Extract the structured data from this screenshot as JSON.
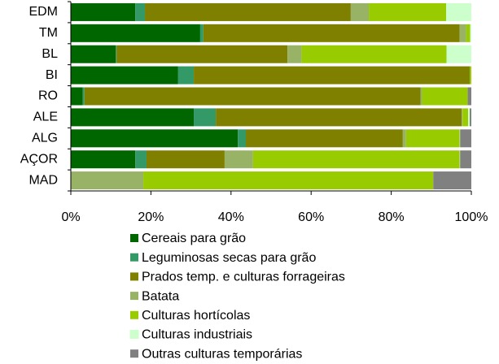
{
  "chart_data": {
    "type": "stacked-barh",
    "categories": [
      "EDM",
      "TM",
      "BL",
      "BI",
      "RO",
      "ALE",
      "ALG",
      "AÇOR",
      "MAD"
    ],
    "series": [
      {
        "name": "Cereais para grão",
        "color": "#006600",
        "values": [
          16.1,
          32.3,
          11.2,
          26.8,
          3.0,
          30.7,
          41.7,
          16.1,
          0
        ]
      },
      {
        "name": "Leguminosas secas para grão",
        "color": "#339966",
        "values": [
          2.4,
          0.8,
          0.2,
          3.9,
          0.4,
          5.5,
          2.0,
          2.8,
          0
        ]
      },
      {
        "name": "Prados temp. e culturas forrageiras",
        "color": "#808000",
        "values": [
          51.4,
          64.0,
          42.7,
          68.9,
          83.9,
          61.4,
          39.2,
          19.5,
          0
        ]
      },
      {
        "name": "Batata",
        "color": "#99b366",
        "values": [
          4.5,
          1.6,
          3.5,
          0,
          0.4,
          0.2,
          0.8,
          7.1,
          18.1
        ]
      },
      {
        "name": "Culturas hortícolas",
        "color": "#99cc00",
        "values": [
          19.3,
          1.0,
          36.2,
          0.4,
          11.4,
          1.4,
          13.4,
          51.6,
          72.4
        ]
      },
      {
        "name": "Culturas industriais",
        "color": "#ccffcc",
        "values": [
          6.3,
          0.3,
          6.2,
          0,
          0,
          0.4,
          0.1,
          0.1,
          0
        ]
      },
      {
        "name": "Outras culturas temporárias",
        "color": "#808080",
        "values": [
          0,
          0,
          0,
          0,
          0.9,
          0.4,
          2.8,
          2.8,
          9.5
        ]
      }
    ],
    "xlim": [
      0,
      100
    ],
    "xticks": [
      {
        "value": 0,
        "label": "0%"
      },
      {
        "value": 20,
        "label": "20%"
      },
      {
        "value": 40,
        "label": "40%"
      },
      {
        "value": 60,
        "label": "60%"
      },
      {
        "value": 80,
        "label": "80%"
      },
      {
        "value": 100,
        "label": "100%"
      }
    ]
  }
}
